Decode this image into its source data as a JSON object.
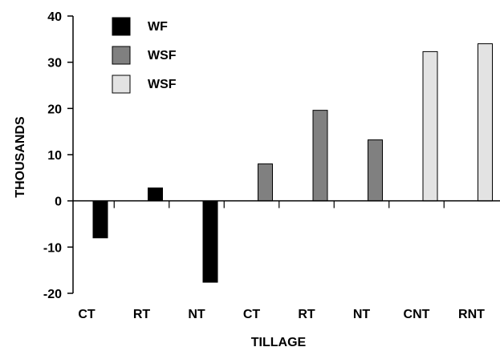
{
  "chart_data": {
    "type": "bar",
    "title": "",
    "xlabel": "TILLAGE",
    "ylabel": "THOUSANDS",
    "ylim": [
      -20,
      40
    ],
    "yticks": [
      -20,
      -10,
      0,
      10,
      20,
      30,
      40
    ],
    "grid": false,
    "legend_position": "top-left",
    "categories": [
      "CT",
      "RT",
      "NT",
      "CT",
      "RT",
      "NT",
      "CNT",
      "RNT"
    ],
    "series": [
      {
        "name": "WF",
        "color": "#000000",
        "values": [
          -8,
          2.8,
          -17.6,
          null,
          null,
          null,
          null,
          null
        ]
      },
      {
        "name": "WSF",
        "color": "#808080",
        "values": [
          null,
          null,
          null,
          8,
          19.6,
          13.2,
          null,
          null
        ]
      },
      {
        "name": "WSF",
        "color": "#e3e3e3",
        "values": [
          null,
          null,
          null,
          null,
          null,
          null,
          32.3,
          34
        ]
      }
    ]
  }
}
